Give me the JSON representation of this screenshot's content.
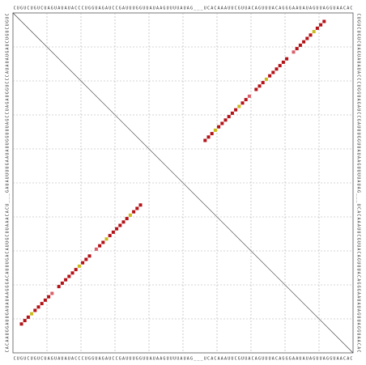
{
  "chart_data": {
    "type": "dotplot",
    "sequence": "CUGUCUGUCUAGUAUAUACCCUGGUAGAUCCGAUUUGGUUAUAAGUUUUAUAG___UCACAAAUUCGUUACAGUUUACAGGGAAUAUAGUUAGGUAACAC",
    "grid": true,
    "ticks": [
      10,
      20,
      30,
      40,
      50,
      60,
      70,
      80,
      90
    ],
    "pairs": {
      "i": [
        3,
        4,
        5,
        6,
        7,
        8,
        9,
        10,
        11,
        12,
        14,
        15,
        16,
        17,
        18,
        19,
        20,
        21,
        22,
        23,
        25,
        26,
        27,
        28,
        29,
        30,
        31,
        32,
        33,
        34,
        35,
        36,
        37,
        38
      ],
      "j": [
        92,
        91,
        90,
        89,
        88,
        87,
        86,
        85,
        84,
        83,
        81,
        80,
        79,
        78,
        77,
        76,
        75,
        74,
        73,
        72,
        70,
        69,
        68,
        67,
        66,
        65,
        64,
        63,
        62,
        61,
        60,
        59,
        58,
        57
      ],
      "color": [
        "#b31217",
        "#b31217",
        "#b31217",
        "#c9b91b",
        "#b31217",
        "#b31217",
        "#b31217",
        "#b31217",
        "#b31217",
        "#d9606a",
        "#b31217",
        "#b31217",
        "#b31217",
        "#b31217",
        "#b31217",
        "#b31217",
        "#c9b91b",
        "#b31217",
        "#b31217",
        "#b31217",
        "#d9606a",
        "#b31217",
        "#b31217",
        "#c9b91b",
        "#b31217",
        "#b31217",
        "#b31217",
        "#b31217",
        "#b31217",
        "#b31217",
        "#c9b91b",
        "#b31217",
        "#b31217",
        "#b31217"
      ]
    }
  }
}
